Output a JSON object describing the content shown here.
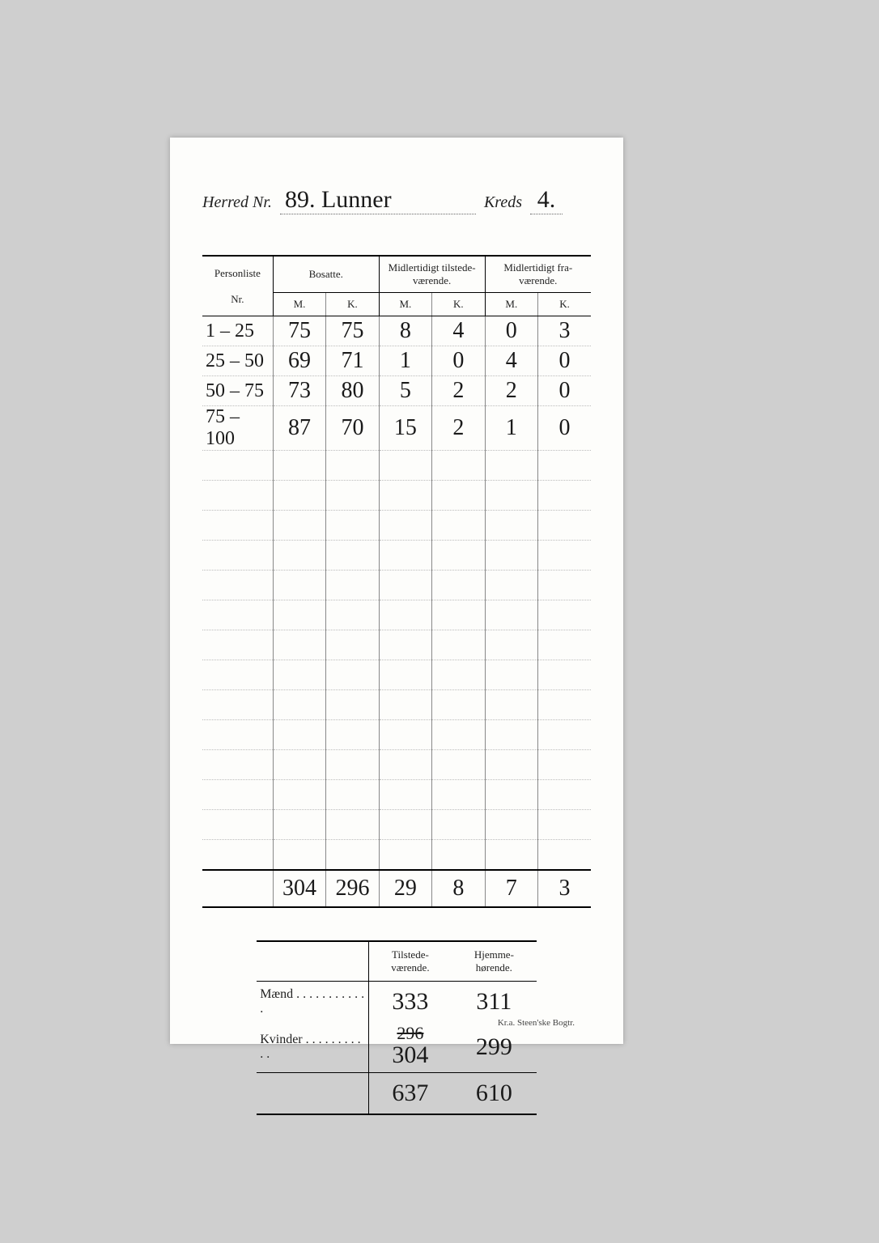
{
  "header": {
    "herred_label": "Herred Nr.",
    "herred_value": "89. Lunner",
    "kreds_label": "Kreds",
    "kreds_value": "4."
  },
  "columns": {
    "personliste": "Personliste",
    "nr": "Nr.",
    "bosatte": "Bosatte.",
    "midl_tilstede": "Midlertidigt tilstede-\nværende.",
    "midl_fra": "Midlertidigt fra-\nværende.",
    "m": "M.",
    "k": "K."
  },
  "rows": [
    {
      "nr": "1 – 25",
      "bm": "75",
      "bk": "75",
      "tm": "8",
      "tk": "4",
      "fm": "0",
      "fk": "3"
    },
    {
      "nr": "25 – 50",
      "bm": "69",
      "bk": "71",
      "tm": "1",
      "tk": "0",
      "fm": "4",
      "fk": "0"
    },
    {
      "nr": "50 – 75",
      "bm": "73",
      "bk": "80",
      "tm": "5",
      "tk": "2",
      "fm": "2",
      "fk": "0"
    },
    {
      "nr": "75 – 100",
      "bm": "87",
      "bk": "70",
      "tm": "15",
      "tk": "2",
      "fm": "1",
      "fk": "0"
    }
  ],
  "empty_row_count": 14,
  "totals": {
    "bm": "304",
    "bk": "296",
    "tm": "29",
    "tk": "8",
    "fm": "7",
    "fk": "3"
  },
  "summary": {
    "col_tilstede": "Tilstede-\nværende.",
    "col_hjemme": "Hjemme-\nhørende.",
    "maend_label": "Mænd . . . . . . . . . . . .",
    "kvinder_label": "Kvinder . . . . . . . . . . .",
    "maend_t": "333",
    "maend_h": "311",
    "kvinder_t_struck": "296",
    "kvinder_t": "304",
    "kvinder_h": "299",
    "sum_t": "637",
    "sum_h": "610"
  },
  "footer": "Kr.a.  Steen'ske Bogtr."
}
